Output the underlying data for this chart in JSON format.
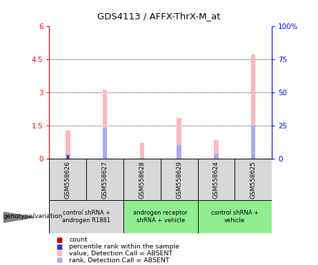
{
  "title": "GDS4113 / AFFX-ThrX-M_at",
  "samples": [
    "GSM558626",
    "GSM558627",
    "GSM558628",
    "GSM558629",
    "GSM558624",
    "GSM558625"
  ],
  "group_info": [
    {
      "start": 0,
      "end": 1,
      "color": "#d8d8d8",
      "label": "control shRNA +\nandrogen R1881"
    },
    {
      "start": 2,
      "end": 3,
      "color": "#90ee90",
      "label": "androgen receptor\nshRNA + vehicle"
    },
    {
      "start": 4,
      "end": 5,
      "color": "#90ee90",
      "label": "control shRNA +\nvehicle"
    }
  ],
  "pink_bars": [
    1.28,
    3.15,
    0.72,
    1.85,
    0.85,
    4.72
  ],
  "blue_bars": [
    0.22,
    1.42,
    0.05,
    0.65,
    0.22,
    1.5
  ],
  "red_bars": [
    0.09,
    0.0,
    0.0,
    0.0,
    0.0,
    0.0
  ],
  "dark_blue_bars": [
    0.07,
    0.0,
    0.0,
    0.0,
    0.0,
    0.0
  ],
  "ylim_left": [
    0,
    6
  ],
  "ylim_right": [
    0,
    100
  ],
  "yticks_left": [
    0,
    1.5,
    3,
    4.5,
    6
  ],
  "yticks_right": [
    0,
    25,
    50,
    75,
    100
  ],
  "ytick_labels_left": [
    "0",
    "1.5",
    "3",
    "4.5",
    "6"
  ],
  "ytick_labels_right": [
    "0",
    "25",
    "50",
    "75",
    "100%"
  ],
  "hlines": [
    1.5,
    3.0,
    4.5
  ],
  "bar_width": 0.12,
  "pink_color": "#ffb6c1",
  "blue_color": "#aaaaee",
  "red_color": "#cc0000",
  "dark_blue_color": "#3333bb",
  "sample_cell_color": "#d8d8d8",
  "legend_items": [
    {
      "color": "#cc0000",
      "label": "count"
    },
    {
      "color": "#3333bb",
      "label": "percentile rank within the sample"
    },
    {
      "color": "#ffb6c1",
      "label": "value, Detection Call = ABSENT"
    },
    {
      "color": "#aaaaee",
      "label": "rank, Detection Call = ABSENT"
    }
  ]
}
